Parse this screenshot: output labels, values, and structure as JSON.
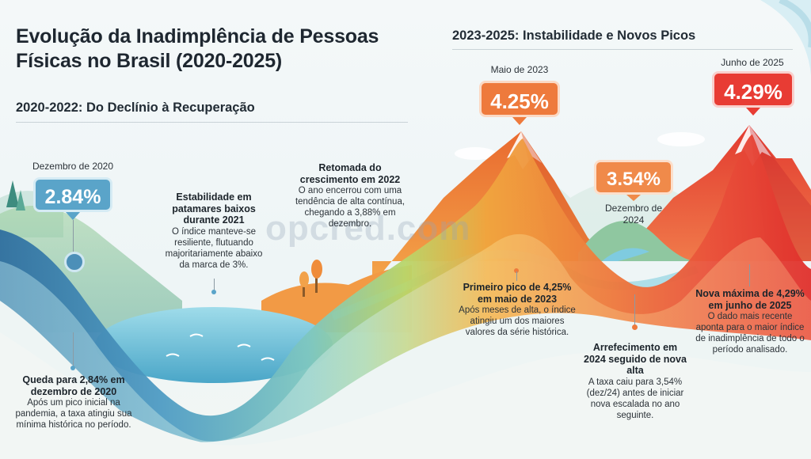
{
  "title": "Evolução da Inadimplência de Pessoas Físicas no Brasil (2020-2025)",
  "section_left": "2020-2022: Do Declínio à Recuperação",
  "section_right": "2023-2025: Instabilidade e Novos Picos",
  "watermark": "opcred.com",
  "highlights": [
    {
      "date": "Dezembro de 2020",
      "value": "2.84%",
      "color": "#5aa4c9"
    },
    {
      "date": "Maio de 2023",
      "value": "4.25%",
      "color": "#ee7a3c"
    },
    {
      "date": "Dezembro de 2024",
      "value": "3.54%",
      "color": "#f08a4a"
    },
    {
      "date": "Junho de 2025",
      "value": "4.29%",
      "color": "#e83c34"
    }
  ],
  "notes": {
    "queda": {
      "heading": "Queda para 2,84% em dezembro de 2020",
      "body": "Após um pico inicial na pandemia, a taxa atingiu sua mínima histórica no período."
    },
    "estabilidade": {
      "heading": "Estabilidade em patamares baixos durante 2021",
      "body": "O índice manteve-se resiliente, flutuando majoritariamente abaixo da marca de 3%."
    },
    "retomada": {
      "heading": "Retomada do crescimento em 2022",
      "body": "O ano encerrou com uma tendência de alta contínua, chegando a 3,88% em dezembro."
    },
    "primeiro_pico": {
      "heading": "Primeiro pico de 4,25% em maio de 2023",
      "body": "Após meses de alta, o índice atingiu um dos maiores valores da série histórica."
    },
    "arrefecimento": {
      "heading": "Arrefecimento em 2024 seguido de nova alta",
      "body": "A taxa caiu para 3,54% (dez/24) antes de iniciar nova escalada no ano seguinte."
    },
    "nova_maxima": {
      "heading": "Nova máxima de 4,29% em junho de 2025",
      "body": "O dado mais recente aponta para o maior índice de inadimplência de todo o período analisado."
    }
  }
}
